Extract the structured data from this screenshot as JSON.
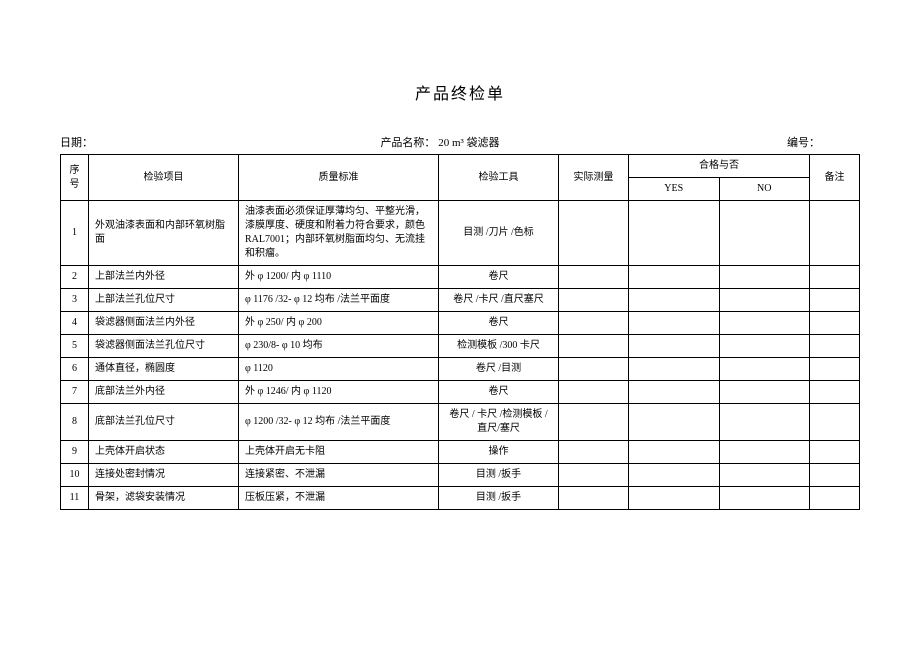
{
  "title": "产品终检单",
  "header": {
    "date_label": "日期：",
    "product_label": "产品名称：",
    "product_value": "20 m³ 袋滤器",
    "serial_label": "编号："
  },
  "columns": {
    "seq": "序号",
    "item": "检验项目",
    "standard": "质量标准",
    "tool": "检验工具",
    "measure": "实际测量",
    "pass_group": "合格与否",
    "yes": "YES",
    "no": "NO",
    "note": "备注"
  },
  "rows": [
    {
      "seq": "1",
      "item": "外观油漆表面和内部环氧树脂面",
      "standard": "油漆表面必须保证厚薄均匀、平整光滑，漆膜厚度、硬度和附着力符合要求，颜色 RAL7001；内部环氧树脂面均匀、无流挂和积瘤。",
      "tool": "目测 /刀片 /色标",
      "measure": "",
      "yes": "",
      "no": "",
      "note": ""
    },
    {
      "seq": "2",
      "item": "上部法兰内外径",
      "standard": "外 φ 1200/ 内 φ 1110",
      "tool": "卷尺",
      "measure": "",
      "yes": "",
      "no": "",
      "note": ""
    },
    {
      "seq": "3",
      "item": "上部法兰孔位尺寸",
      "standard": "φ 1176 /32- φ 12 均布 /法兰平面度",
      "tool": "卷尺 /卡尺 /直尺塞尺",
      "measure": "",
      "yes": "",
      "no": "",
      "note": ""
    },
    {
      "seq": "4",
      "item": "袋滤器侧面法兰内外径",
      "standard": "外 φ 250/ 内 φ 200",
      "tool": "卷尺",
      "measure": "",
      "yes": "",
      "no": "",
      "note": ""
    },
    {
      "seq": "5",
      "item": "袋滤器侧面法兰孔位尺寸",
      "standard": "φ 230/8- φ 10 均布",
      "tool": "检测模板 /300 卡尺",
      "measure": "",
      "yes": "",
      "no": "",
      "note": ""
    },
    {
      "seq": "6",
      "item": "通体直径，椭圆度",
      "standard": "φ 1120",
      "tool": "卷尺 /目测",
      "measure": "",
      "yes": "",
      "no": "",
      "note": ""
    },
    {
      "seq": "7",
      "item": "底部法兰外内径",
      "standard": "外 φ 1246/ 内 φ 1120",
      "tool": "卷尺",
      "measure": "",
      "yes": "",
      "no": "",
      "note": ""
    },
    {
      "seq": "8",
      "item": "底部法兰孔位尺寸",
      "standard": "φ 1200 /32- φ 12 均布 /法兰平面度",
      "tool": "卷尺 / 卡尺 /检测模板 /直尺/塞尺",
      "measure": "",
      "yes": "",
      "no": "",
      "note": ""
    },
    {
      "seq": "9",
      "item": "上壳体开启状态",
      "standard": "上壳体开启无卡阻",
      "tool": "操作",
      "measure": "",
      "yes": "",
      "no": "",
      "note": ""
    },
    {
      "seq": "10",
      "item": "连接处密封情况",
      "standard": "连接紧密、不泄漏",
      "tool": "目测 /扳手",
      "measure": "",
      "yes": "",
      "no": "",
      "note": ""
    },
    {
      "seq": "11",
      "item": "骨架，滤袋安装情况",
      "standard": "压板压紧，不泄漏",
      "tool": "目测 /扳手",
      "measure": "",
      "yes": "",
      "no": "",
      "note": ""
    }
  ]
}
